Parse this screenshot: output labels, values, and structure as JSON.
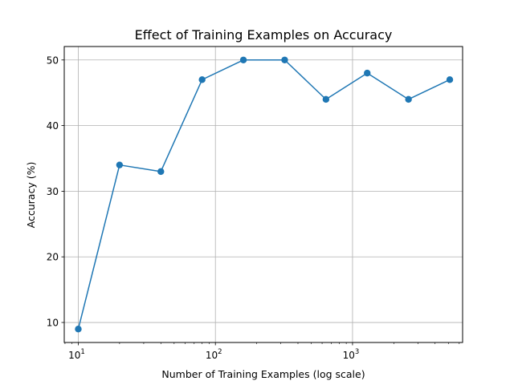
{
  "chart_data": {
    "type": "line",
    "title": "Effect of Training Examples on Accuracy",
    "xlabel": "Number of Training Examples (log scale)",
    "ylabel": "Accuracy (%)",
    "xscale": "log",
    "xlim": [
      7.9,
      6350
    ],
    "ylim": [
      6.95,
      52.05
    ],
    "grid": true,
    "x": [
      10,
      20,
      40,
      80,
      160,
      320,
      640,
      1280,
      2560,
      5120
    ],
    "series": [
      {
        "values": [
          9,
          34,
          33,
          47,
          50,
          50,
          44,
          48,
          44,
          47
        ],
        "color": "#1f77b4",
        "marker": "circle"
      }
    ],
    "x_ticks": [
      {
        "value": 10,
        "base": "10",
        "exponent": "1"
      },
      {
        "value": 100,
        "base": "10",
        "exponent": "2"
      },
      {
        "value": 1000,
        "base": "10",
        "exponent": "3"
      }
    ],
    "y_ticks": [
      10,
      20,
      30,
      40,
      50
    ]
  }
}
